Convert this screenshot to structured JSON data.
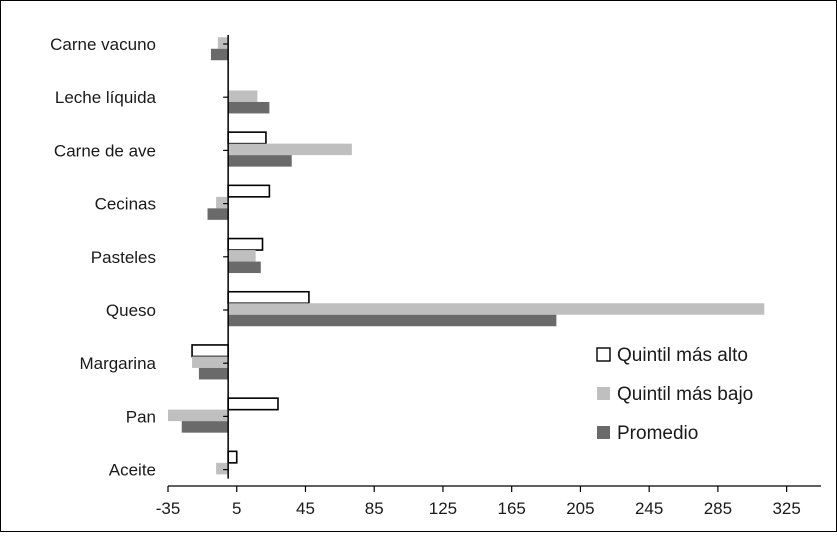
{
  "chart_data": {
    "type": "bar",
    "orientation": "horizontal",
    "categories": [
      "Carne vacuno",
      "Leche líquida",
      "Carne de ave",
      "Cecinas",
      "Pasteles",
      "Queso",
      "Margarina",
      "Pan",
      "Aceite"
    ],
    "series": [
      {
        "name": "Quintil más alto",
        "color": "#ffffff",
        "stroke": "#000000",
        "values": [
          null,
          null,
          22,
          24,
          20,
          47,
          -21,
          29,
          5
        ]
      },
      {
        "name": "Quintil más bajo",
        "color": "#bfbfbf",
        "values": [
          -6,
          17,
          72,
          -7,
          16,
          312,
          -21,
          -35,
          -7
        ]
      },
      {
        "name": "Promedio",
        "color": "#6a6a6a",
        "values": [
          -10,
          24,
          37,
          -12,
          19,
          191,
          -17,
          -27,
          null
        ]
      }
    ],
    "x_ticks": [
      "-35",
      "5",
      "45",
      "85",
      "125",
      "165",
      "205",
      "245",
      "285",
      "325"
    ],
    "xlim": [
      -35,
      345
    ],
    "title": "",
    "xlabel": "",
    "ylabel": "",
    "grid": false,
    "legend_position": "right"
  }
}
